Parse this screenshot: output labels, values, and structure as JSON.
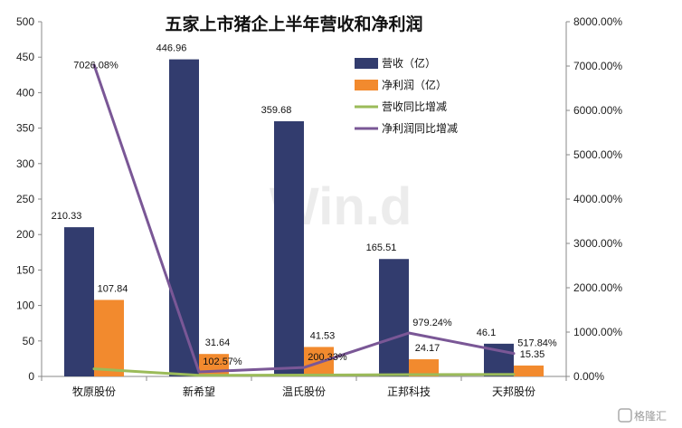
{
  "chart_data": {
    "type": "bar",
    "title": "五家上市猪企上半年营收和净利润",
    "categories": [
      "牧原股份",
      "新希望",
      "温氏股份",
      "正邦科技",
      "天邦股份"
    ],
    "series": [
      {
        "name": "营收（亿）",
        "kind": "bar",
        "axis": "left",
        "color": "#323c6e",
        "values": [
          210.33,
          446.96,
          359.68,
          165.51,
          46.1
        ],
        "labels": [
          "210.33",
          "446.96",
          "359.68",
          "165.51",
          "46.1"
        ]
      },
      {
        "name": "净利润（亿）",
        "kind": "bar",
        "axis": "left",
        "color": "#f28a2e",
        "values": [
          107.84,
          31.64,
          41.53,
          24.17,
          15.35
        ],
        "labels": [
          "107.84",
          "31.64",
          "41.53",
          "24.17",
          "15.35"
        ]
      },
      {
        "name": "营收同比增减",
        "kind": "line",
        "axis": "right",
        "color": "#9bbb59",
        "values": [
          170,
          25,
          30,
          40,
          45
        ],
        "labels": [
          "",
          "",
          "",
          "",
          ""
        ]
      },
      {
        "name": "净利润同比增减",
        "kind": "line",
        "axis": "right",
        "color": "#7a5796",
        "values": [
          7026.08,
          102.57,
          200.33,
          979.24,
          517.84
        ],
        "labels": [
          "7026.08%",
          "102.57%",
          "200.33%",
          "979.24%",
          "517.84%"
        ]
      }
    ],
    "y_left": {
      "min": 0,
      "max": 500,
      "step": 50,
      "ticks": [
        "0",
        "50",
        "100",
        "150",
        "200",
        "250",
        "300",
        "350",
        "400",
        "450",
        "500"
      ]
    },
    "y_right": {
      "min": 0,
      "max": 8000,
      "step": 1000,
      "ticks": [
        "0.00%",
        "1000.00%",
        "2000.00%",
        "3000.00%",
        "4000.00%",
        "5000.00%",
        "6000.00%",
        "7000.00%",
        "8000.00%"
      ]
    },
    "legend_position": "top-right",
    "grid": false,
    "watermark": "Win.d"
  },
  "brand": {
    "text": "格隆汇",
    "icon": "glh-logo-icon"
  }
}
